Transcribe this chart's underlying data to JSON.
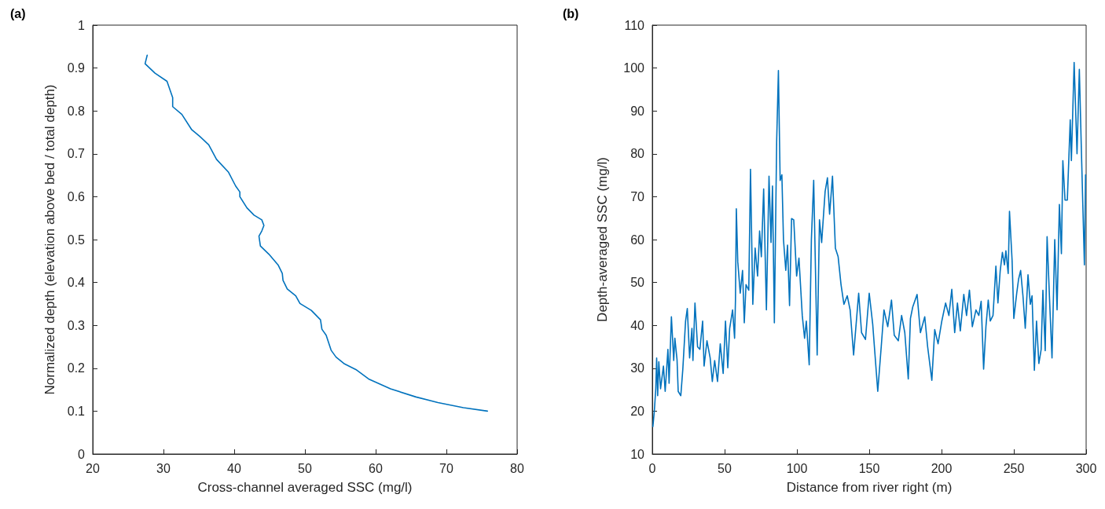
{
  "chart_data": [
    {
      "type": "line",
      "title": "(a)",
      "xlabel": "Cross-channel averaged SSC (mg/l)",
      "ylabel": "Normalized depth (elevation above bed / total depth)",
      "color": "#0072bd",
      "marker": "none",
      "grid": false,
      "x": [
        27.7,
        27.4,
        28.8,
        30.5,
        31.3,
        31.3,
        32.6,
        34,
        35.1,
        36.4,
        37.5,
        39.2,
        40.2,
        40.8,
        40.8,
        41.8,
        42.8,
        43.9,
        44.2,
        43.9,
        43.5,
        43.7,
        44.9,
        46.2,
        46.8,
        46.9,
        47.5,
        48.7,
        49.3,
        50.9,
        52.2,
        52.4,
        53.0,
        53.7,
        54.4,
        55.6,
        57.2,
        59,
        62.1,
        65.7,
        68.8,
        72.4,
        75.8
      ],
      "values": [
        0.93,
        0.91,
        0.888,
        0.869,
        0.831,
        0.81,
        0.792,
        0.756,
        0.741,
        0.721,
        0.687,
        0.657,
        0.625,
        0.611,
        0.6,
        0.574,
        0.557,
        0.546,
        0.533,
        0.52,
        0.508,
        0.485,
        0.466,
        0.441,
        0.421,
        0.405,
        0.385,
        0.369,
        0.351,
        0.335,
        0.313,
        0.291,
        0.277,
        0.242,
        0.226,
        0.21,
        0.197,
        0.175,
        0.152,
        0.133,
        0.12,
        0.108,
        0.1
      ],
      "xlim": [
        20,
        80
      ],
      "ylim": [
        0,
        1
      ],
      "xticks": [
        20,
        30,
        40,
        50,
        60,
        70,
        80
      ],
      "yticks": [
        0,
        0.1,
        0.2,
        0.3,
        0.4,
        0.5,
        0.6,
        0.7,
        0.8,
        0.9,
        1
      ]
    },
    {
      "type": "line",
      "title": "(b)",
      "xlabel": "Distance from river right (m)",
      "ylabel": "Depth-averaged SSC (mg/l)",
      "color": "#0072bd",
      "marker": "none",
      "grid": false,
      "x": [
        0.4,
        1.4,
        2.4,
        3.0,
        3.7,
        4.5,
        5.7,
        7.7,
        8.9,
        10.8,
        11.6,
        13.2,
        14.8,
        15.6,
        17.1,
        17.9,
        19.7,
        21.1,
        23.0,
        24.2,
        25.8,
        27.4,
        28.1,
        29.5,
        31.3,
        32.9,
        34.8,
        35.8,
        37.8,
        40.0,
        41.5,
        43.1,
        45.1,
        47.0,
        49.0,
        50.6,
        52.2,
        53.5,
        55.5,
        56.9,
        57.5,
        58.1,
        59.1,
        60.8,
        62.4,
        63.6,
        64.8,
        66.7,
        67.9,
        69.5,
        71.1,
        72.8,
        74.2,
        75.4,
        77.0,
        78.9,
        80.7,
        82.1,
        83.1,
        84.4,
        86.0,
        87.2,
        88.4,
        89.6,
        90.7,
        92.3,
        93.5,
        94.9,
        96.3,
        97.8,
        99.8,
        101.4,
        103.7,
        105.3,
        106.5,
        108.5,
        110.0,
        111.6,
        114.0,
        115.6,
        117.1,
        119.5,
        121.1,
        122.6,
        124.6,
        126.6,
        128.5,
        130.5,
        132.5,
        134.8,
        136.8,
        139.2,
        142.7,
        144.7,
        147.4,
        150.0,
        152.4,
        155.9,
        158.3,
        160.2,
        162.8,
        165.4,
        167.3,
        170.1,
        172.4,
        174.6,
        177.0,
        178.5,
        180.1,
        183.1,
        185.4,
        188.4,
        190.4,
        193.3,
        195.3,
        197.6,
        200.2,
        202.8,
        205.1,
        207.1,
        209.1,
        211.0,
        213.0,
        215.4,
        217.3,
        219.3,
        221.3,
        223.8,
        225.8,
        227.4,
        229.1,
        230.7,
        232.3,
        233.7,
        235.6,
        237.6,
        239.0,
        240.6,
        242.1,
        243.5,
        244.5,
        246.1,
        247.0,
        248.8,
        250.0,
        252.0,
        253.3,
        254.7,
        256.3,
        257.9,
        259.8,
        261.4,
        262.6,
        264.2,
        265.7,
        267.3,
        268.9,
        270.1,
        271.7,
        273.0,
        275.0,
        276.4,
        278.3,
        279.9,
        281.5,
        282.9,
        283.9,
        285.4,
        287.0,
        289.0,
        289.8,
        291.7,
        293.7,
        295.3,
        296.7,
        298.8,
        299.6
      ],
      "values": [
        16.4,
        20,
        25.2,
        32.4,
        23.6,
        31.5,
        25.2,
        30.5,
        24.6,
        34.4,
        26.5,
        42,
        31.8,
        37,
        32,
        24.6,
        23.6,
        29.8,
        41,
        43.9,
        32.4,
        39.3,
        31.8,
        45.2,
        35,
        34.4,
        41,
        30.5,
        36.4,
        32.4,
        26.9,
        31.8,
        26.9,
        35.7,
        28.8,
        41,
        30.1,
        39.3,
        43.6,
        37,
        45.9,
        67.2,
        54.8,
        47.5,
        52.8,
        40.6,
        49.5,
        48.2,
        76.4,
        44.9,
        58,
        51.5,
        62,
        56,
        71.8,
        43.6,
        74.8,
        59.3,
        72.5,
        40.6,
        83,
        99.4,
        73.8,
        75.1,
        60,
        52.8,
        58.7,
        44.6,
        64.9,
        64.6,
        51.5,
        55.7,
        42.3,
        37,
        41,
        30.8,
        60,
        73.8,
        33.1,
        64.6,
        59.3,
        71.2,
        74.4,
        65.9,
        74.8,
        58,
        56,
        49.5,
        44.9,
        46.9,
        43.6,
        33.1,
        47.5,
        38.3,
        36.7,
        47.5,
        40.3,
        24.6,
        35,
        43.6,
        39.7,
        45.9,
        37.7,
        36.4,
        42.3,
        38.3,
        27.5,
        41.6,
        44.3,
        47.2,
        38.3,
        42,
        35,
        27.2,
        39,
        35.7,
        41,
        45.2,
        42.3,
        48.4,
        38.3,
        45.2,
        38.7,
        47.2,
        42.3,
        48.2,
        39.7,
        43.6,
        42.3,
        45.6,
        29.8,
        39.7,
        45.9,
        41,
        42.3,
        53.8,
        45.2,
        52.8,
        57,
        54.1,
        57.4,
        52.1,
        66.6,
        55.1,
        41.6,
        47.5,
        50.8,
        52.8,
        46.9,
        39.3,
        51.8,
        44.9,
        46.9,
        29.5,
        41,
        31.1,
        34.4,
        48.2,
        34.1,
        60.7,
        43.6,
        32.4,
        60,
        43.6,
        68.2,
        56.7,
        78.4,
        69.2,
        69.2,
        87.9,
        78.4,
        101.3,
        80,
        99.7,
        81,
        54.1,
        75.1
      ],
      "xlim": [
        0,
        300
      ],
      "ylim": [
        10,
        110
      ],
      "xticks": [
        0,
        50,
        100,
        150,
        200,
        250,
        300
      ],
      "yticks": [
        10,
        20,
        30,
        40,
        50,
        60,
        70,
        80,
        90,
        100,
        110
      ]
    }
  ]
}
